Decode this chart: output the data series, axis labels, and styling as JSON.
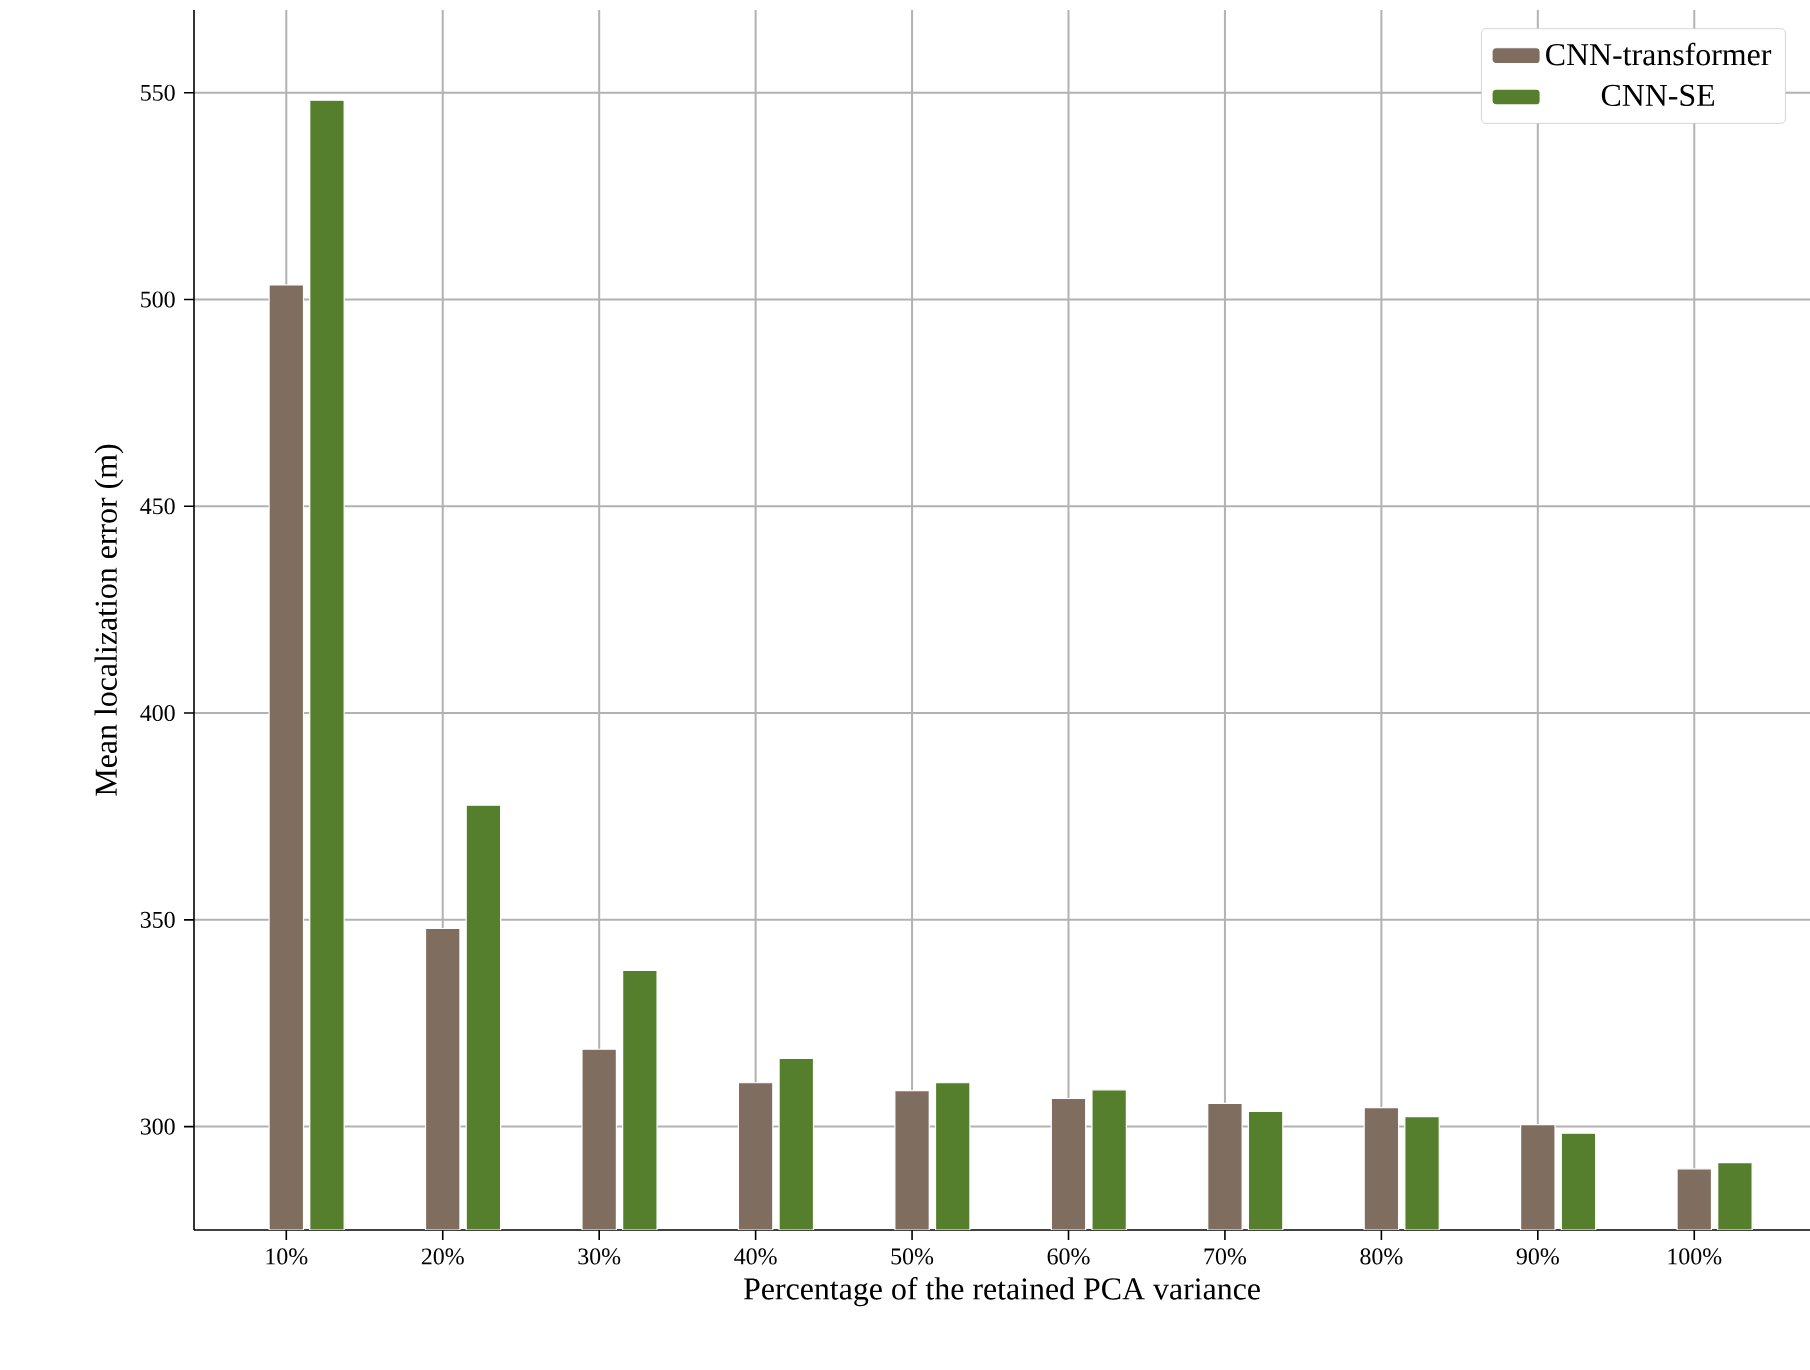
{
  "chart_data": {
    "type": "bar",
    "xlabel": "Percentage of the retained PCA variance",
    "ylabel": "Mean localization error (m)",
    "categories": [
      "10%",
      "20%",
      "30%",
      "40%",
      "50%",
      "60%",
      "70%",
      "80%",
      "90%",
      "100%"
    ],
    "series": [
      {
        "name": "CNN-transformer",
        "color": "#7f6d5f",
        "values": [
          503.5,
          347.9,
          318.7,
          310.6,
          308.7,
          306.8,
          305.6,
          304.6,
          300.5,
          289.8
        ]
      },
      {
        "name": "CNN-SE",
        "color": "#557f2d",
        "values": [
          548.2,
          377.7,
          337.8,
          316.5,
          310.6,
          308.9,
          303.7,
          302.4,
          298.4,
          291.3
        ]
      }
    ],
    "ylim": [
      275,
      570
    ],
    "yticks": [
      300,
      350,
      400,
      450,
      500,
      550
    ],
    "grid": true,
    "legend": "top right"
  }
}
